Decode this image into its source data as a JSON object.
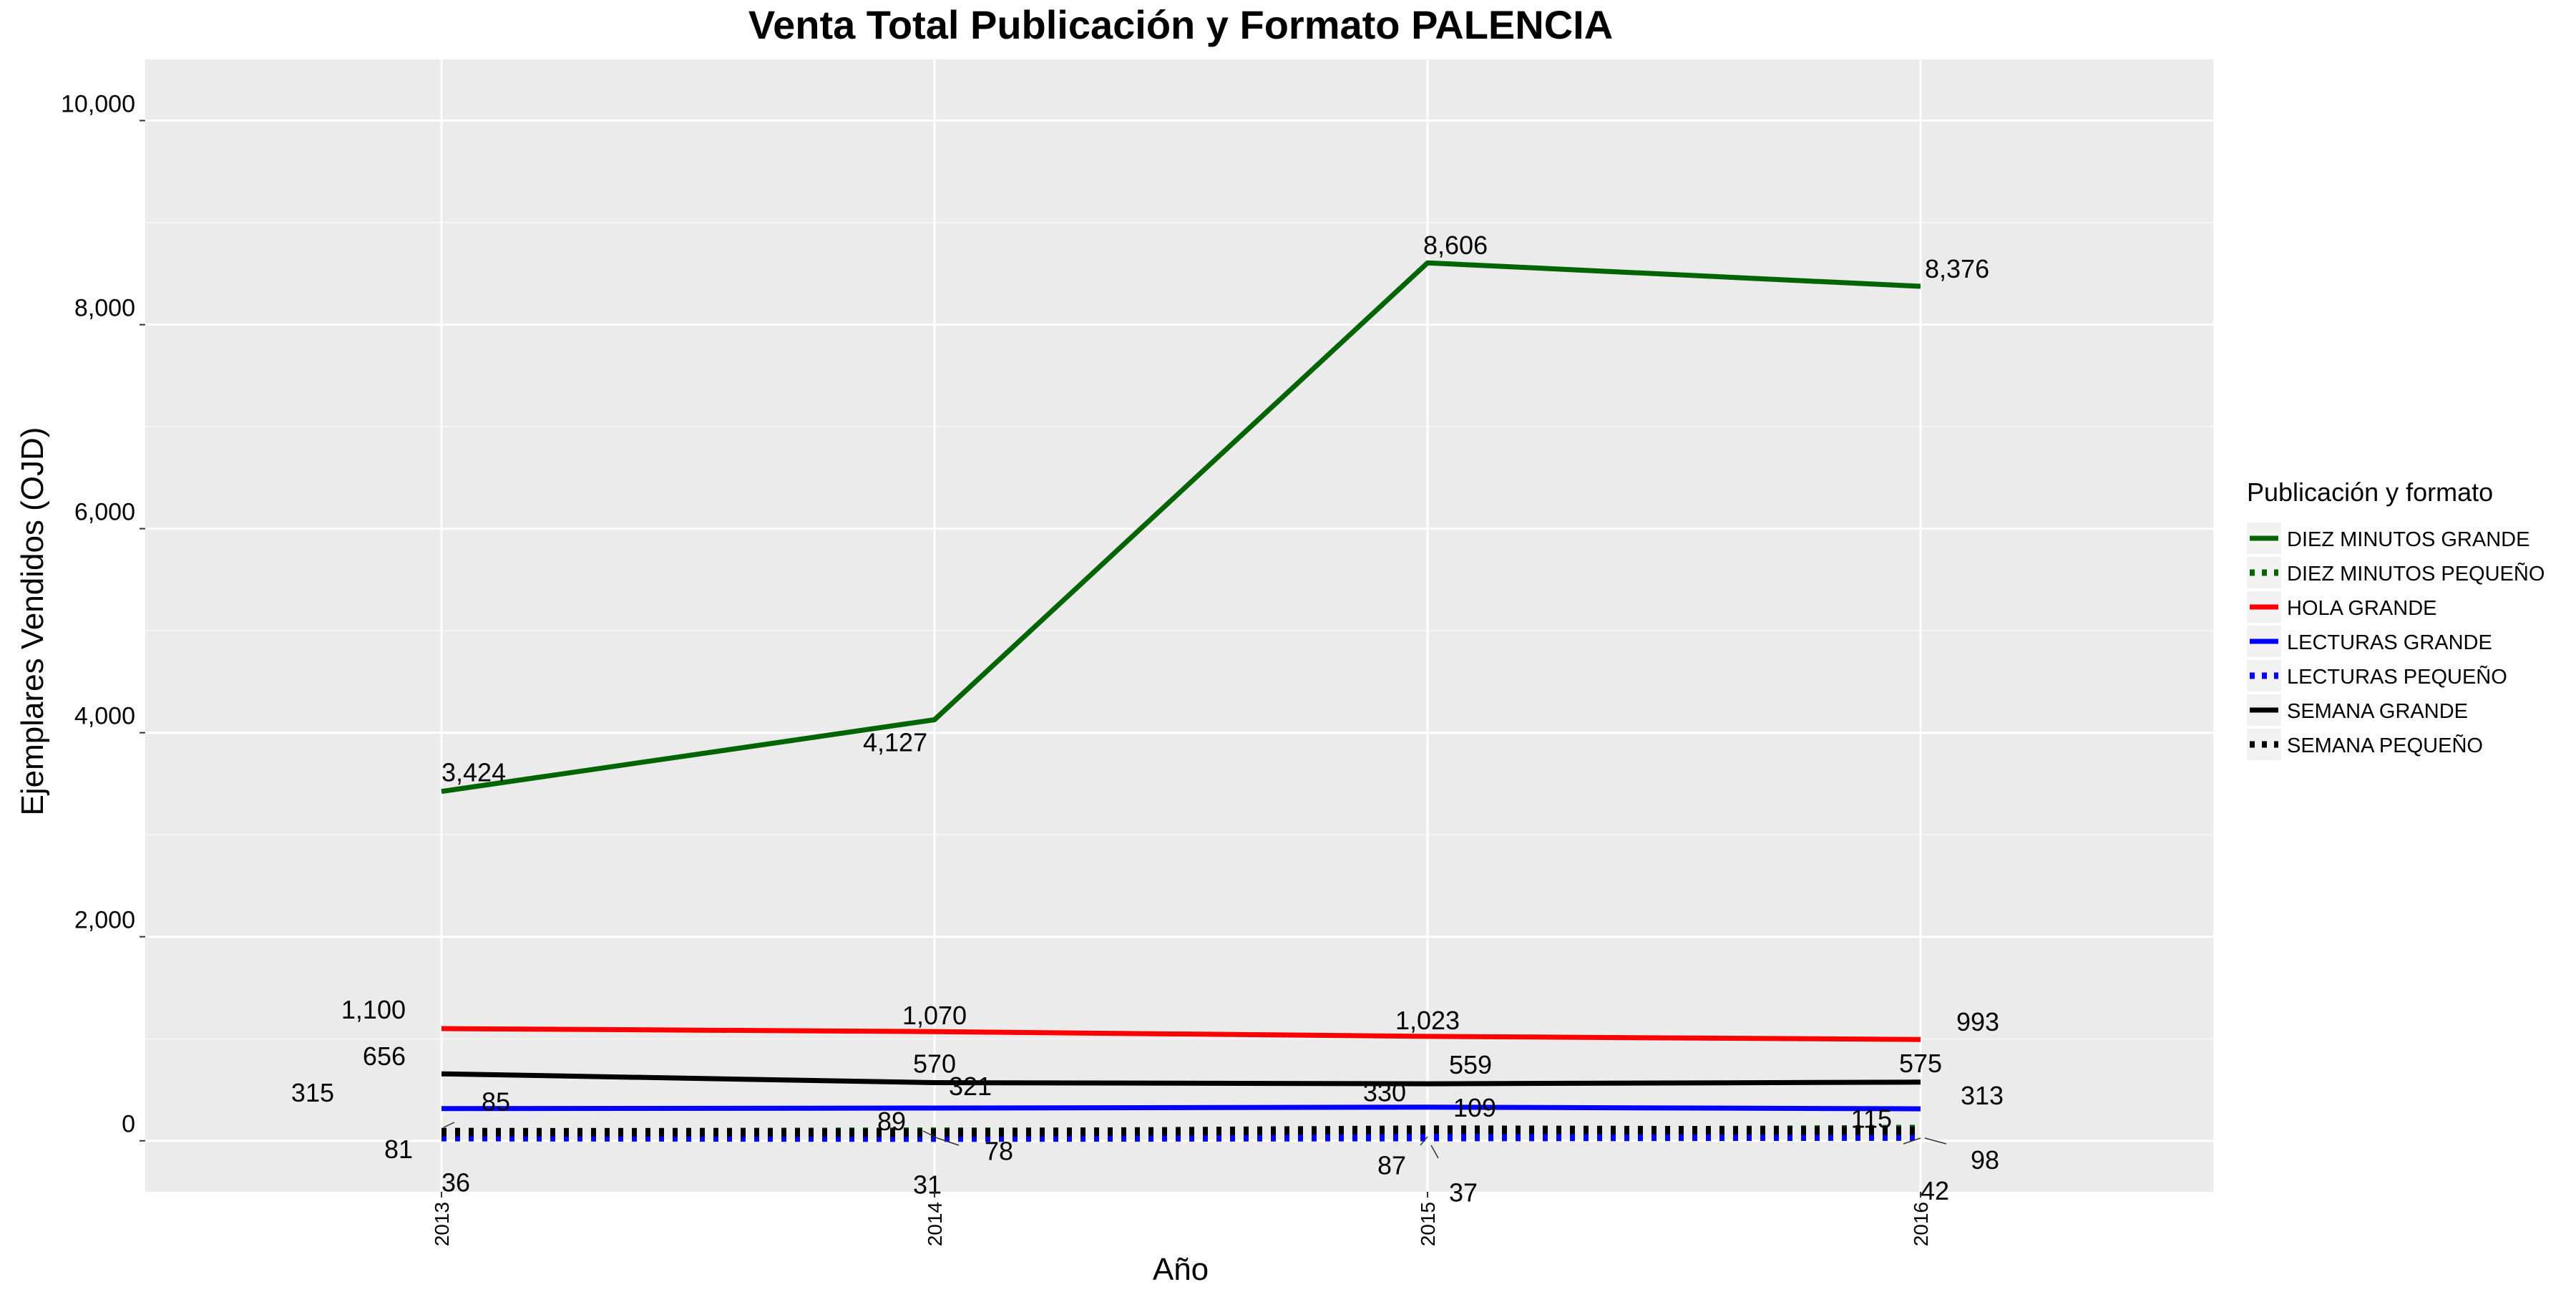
{
  "chart_data": {
    "type": "line",
    "title": "Venta Total Publicación y Formato  PALENCIA",
    "xlabel": "Año",
    "ylabel": "Ejemplares Vendidos (OJD)",
    "categories": [
      "2013",
      "2014",
      "2015",
      "2016"
    ],
    "ylim": [
      -500,
      10600
    ],
    "yticks": [
      0,
      2000,
      4000,
      6000,
      8000,
      10000
    ],
    "ytick_labels": [
      "0",
      "2,000",
      "4,000",
      "6,000",
      "8,000",
      "10,000"
    ],
    "grid": true,
    "legend_title": "Publicación y formato",
    "legend_position": "right",
    "series": [
      {
        "name": "DIEZ MINUTOS GRANDE",
        "color": "#006400",
        "style": "solid",
        "values": [
          3424,
          4127,
          8606,
          8376
        ],
        "labels": [
          "3,424",
          "4,127",
          "8,606",
          "8,376"
        ]
      },
      {
        "name": "DIEZ MINUTOS PEQUEÑO",
        "color": "#006400",
        "style": "dotted",
        "values": [
          81,
          89,
          87,
          115
        ],
        "labels": [
          "81",
          "89",
          "87",
          "115"
        ]
      },
      {
        "name": "HOLA GRANDE",
        "color": "#ff0000",
        "style": "solid",
        "values": [
          1100,
          1070,
          1023,
          993
        ],
        "labels": [
          "1,100",
          "1,070",
          "1,023",
          "993"
        ]
      },
      {
        "name": "LECTURAS GRANDE",
        "color": "#0000ff",
        "style": "solid",
        "values": [
          315,
          321,
          330,
          313
        ],
        "labels": [
          "315",
          "321",
          "330",
          "313"
        ]
      },
      {
        "name": "LECTURAS PEQUEÑO",
        "color": "#0000ff",
        "style": "dotted",
        "values": [
          36,
          31,
          37,
          42
        ],
        "labels": [
          "36",
          "31",
          "37",
          "42"
        ]
      },
      {
        "name": "SEMANA GRANDE",
        "color": "#000000",
        "style": "solid",
        "values": [
          656,
          570,
          559,
          575
        ],
        "labels": [
          "656",
          "570",
          "559",
          "575"
        ]
      },
      {
        "name": "SEMANA PEQUEÑO",
        "color": "#000000",
        "style": "dotted",
        "values": [
          85,
          78,
          109,
          98
        ],
        "labels": [
          "85",
          "78",
          "109",
          "98"
        ]
      }
    ]
  }
}
